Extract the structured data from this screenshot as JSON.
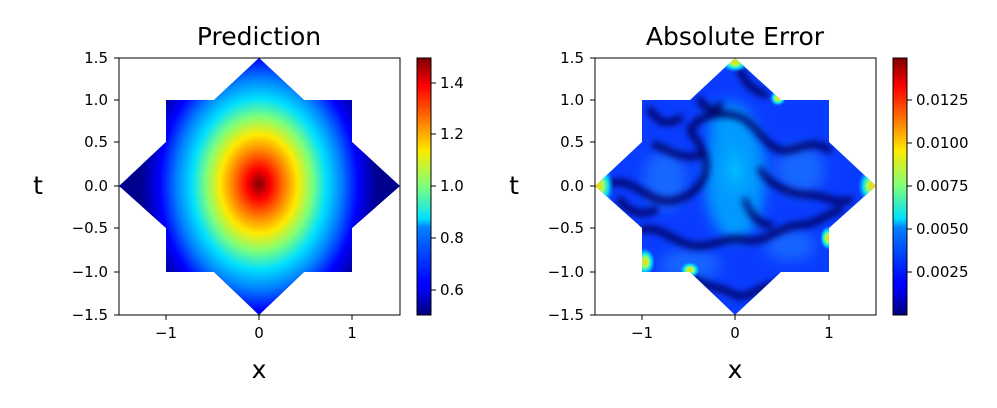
{
  "chart_data": [
    {
      "type": "heatmap",
      "title": "Prediction",
      "xlabel": "x",
      "ylabel": "t",
      "xlim": [
        -1.5,
        1.5
      ],
      "ylim": [
        -1.5,
        1.5
      ],
      "xticks": [
        "−1",
        "0",
        "1"
      ],
      "yticks": [
        "1.5",
        "1.0",
        "0.5",
        "0.0",
        "−0.5",
        "−1.0",
        "−1.5"
      ],
      "domain_shape": "eight-pointed star (square [-1,1]² plus diamond |x|+|t|≤1.5)",
      "colormap": "jet",
      "colorbar": {
        "range": [
          0.5,
          1.5
        ],
        "ticks": [
          "1.4",
          "1.2",
          "1.0",
          "0.8",
          "0.6"
        ]
      },
      "field": {
        "peak_value": 1.5,
        "peak_at": [
          0,
          0
        ],
        "background_value": 0.5,
        "shape": "elliptical bump, taller in t than in x"
      }
    },
    {
      "type": "heatmap",
      "title": "Absolute Error",
      "xlabel": "x",
      "ylabel": "t",
      "xlim": [
        -1.5,
        1.5
      ],
      "ylim": [
        -1.5,
        1.5
      ],
      "xticks": [
        "−1",
        "0",
        "1"
      ],
      "yticks": [
        "1.5",
        "1.0",
        "0.5",
        "0.0",
        "−0.5",
        "−1.0",
        "−1.5"
      ],
      "domain_shape": "eight-pointed star (square [-1,1]² plus diamond |x|+|t|≤1.5)",
      "colormap": "jet",
      "colorbar": {
        "range": [
          0.0,
          0.0145
        ],
        "ticks": [
          "0.0125",
          "0.0100",
          "0.0075",
          "0.0050",
          "0.0025"
        ]
      },
      "field": {
        "typical_value": 0.0025,
        "max_value": 0.0145,
        "max_regions": "star tips and square corners"
      }
    }
  ]
}
